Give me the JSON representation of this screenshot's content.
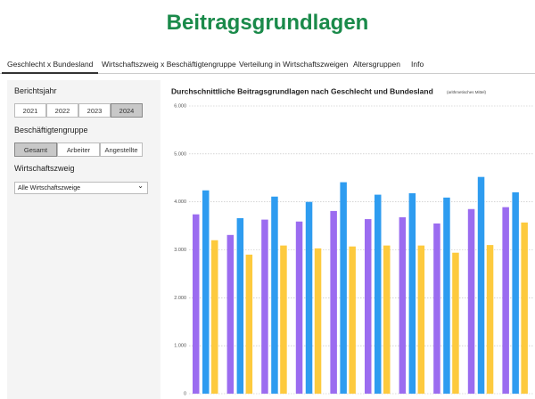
{
  "header": {
    "title": "Beitragsgrundlagen"
  },
  "tabs": [
    "Geschlecht x Bundesland",
    "Wirtschaftszweig x Beschäftigtengruppe",
    "Verteilung in Wirtschaftszweigen",
    "Altersgruppen",
    "Info"
  ],
  "sidebar": {
    "year_label": "Berichtsjahr",
    "years": [
      "2021",
      "2022",
      "2023",
      "2024"
    ],
    "group_label": "Beschäftigtengruppe",
    "groups": [
      "Gesamt",
      "Arbeiter",
      "Angestellte"
    ],
    "sector_label": "Wirtschaftszweig",
    "sector_select": "Alle Wirtschaftszweige"
  },
  "chart_data": {
    "type": "bar",
    "title": "Durchschnittliche Beitragsgrundlagen nach Geschlecht und Bundesland",
    "subtitle": "(arithmetisches Mittel)",
    "categories": [
      null,
      null,
      null,
      null,
      null,
      null,
      null,
      null,
      null,
      null
    ],
    "series": [
      {
        "color": "#9b6cf0",
        "values": [
          3740,
          3310,
          3630,
          3590,
          3810,
          3640,
          3680,
          3550,
          3850,
          3890
        ]
      },
      {
        "color": "#2e9cf0",
        "values": [
          4240,
          3660,
          4110,
          4000,
          4410,
          4150,
          4180,
          4090,
          4520,
          4200
        ]
      },
      {
        "color": "#fdca3e",
        "values": [
          3200,
          2900,
          3090,
          3030,
          3070,
          3090,
          3090,
          2940,
          3100,
          3570
        ]
      }
    ],
    "ylim": [
      0,
      6000
    ],
    "yticks": [
      0,
      {
        "value": 1000,
        "label": "1.000"
      },
      {
        "value": 2000,
        "label": "2.000"
      },
      {
        "value": 3000,
        "label": "3.000"
      },
      {
        "value": 4000,
        "label": "4.000"
      },
      {
        "value": 5000,
        "label": "5.000"
      },
      {
        "value": 6000,
        "label": "6.000"
      }
    ],
    "grid": true
  }
}
